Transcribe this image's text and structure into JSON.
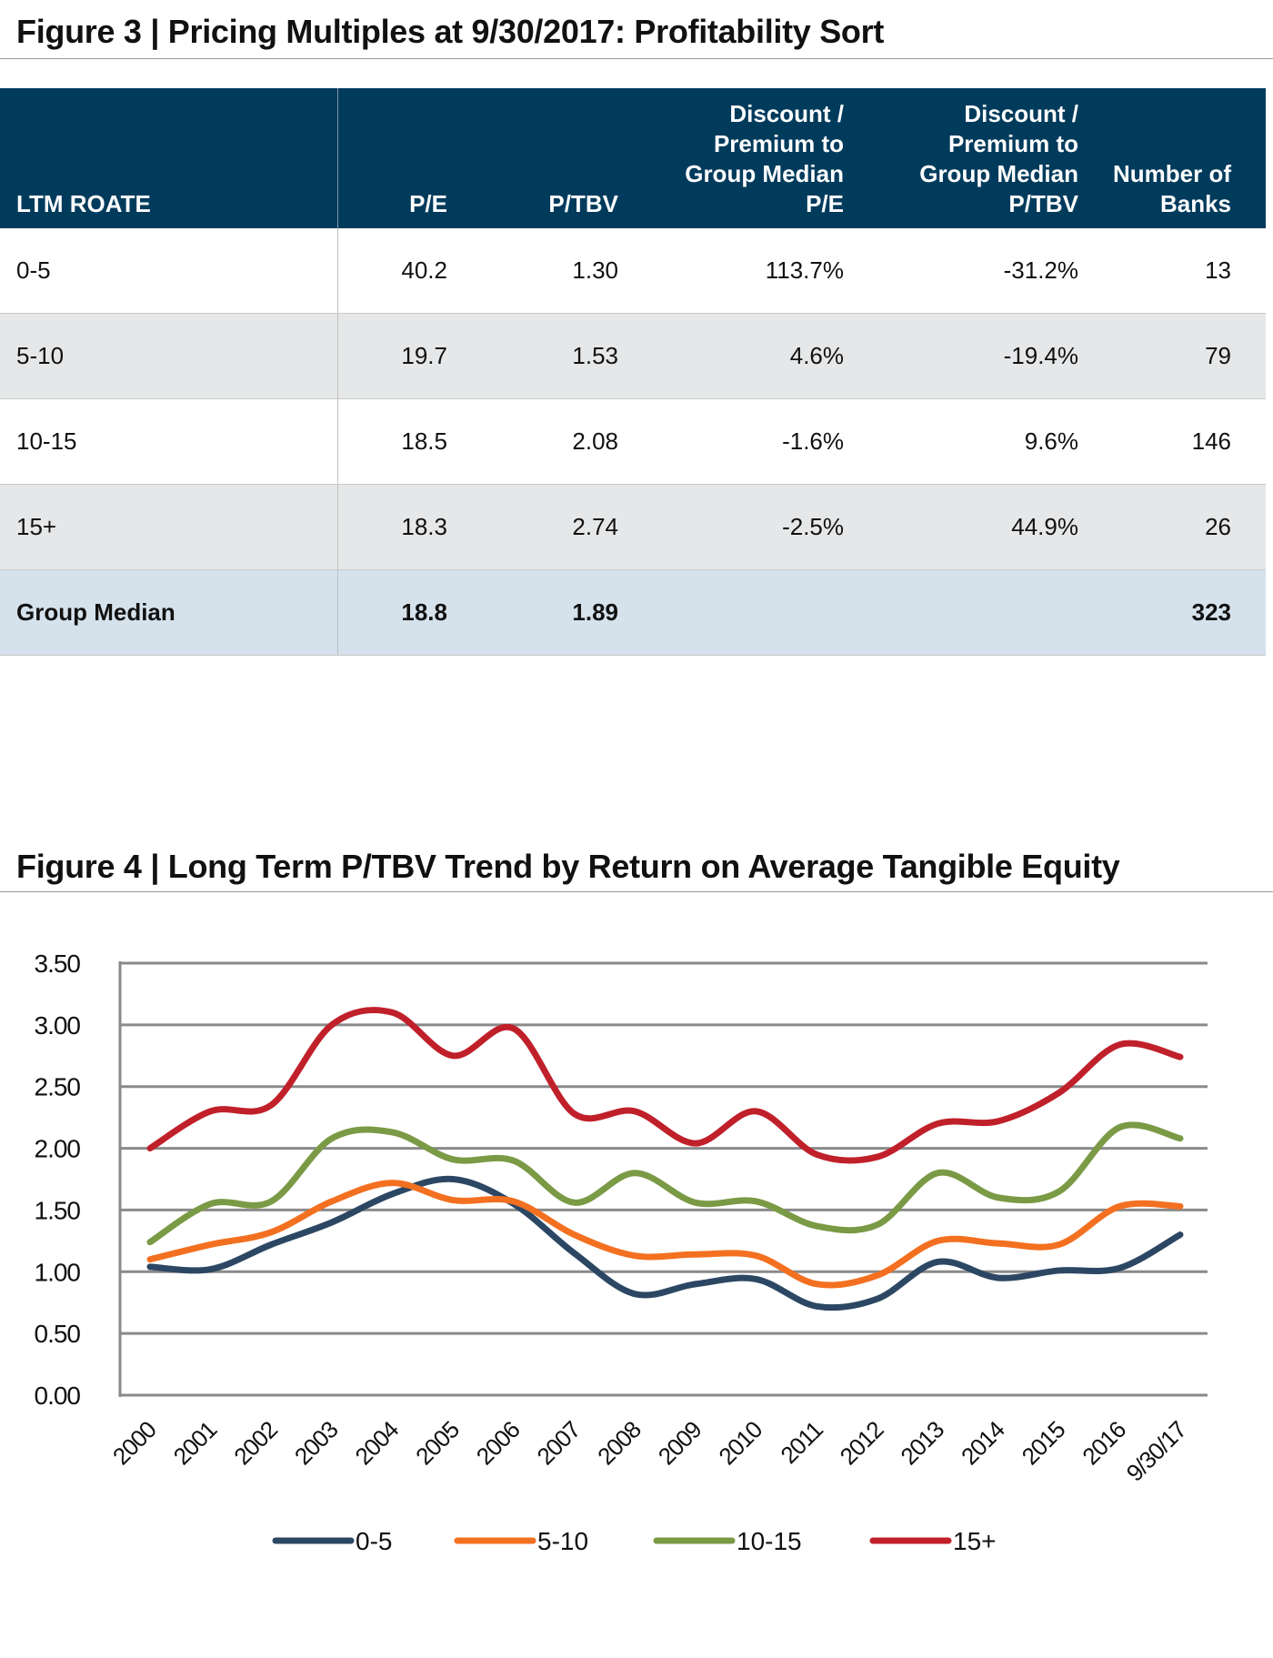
{
  "figure3": {
    "title": "Figure 3 | Pricing Multiples at 9/30/2017: Profitability Sort",
    "headers": [
      "LTM ROATE",
      "P/E",
      "P/TBV",
      "Discount / Premium to Group Median P/E",
      "Discount / Premium to Group Median P/TBV",
      "Number of Banks"
    ],
    "rows": [
      [
        "0-5",
        "40.2",
        "1.30",
        "113.7%",
        "-31.2%",
        "13"
      ],
      [
        "5-10",
        "19.7",
        "1.53",
        "4.6%",
        "-19.4%",
        "79"
      ],
      [
        "10-15",
        "18.5",
        "2.08",
        "-1.6%",
        "9.6%",
        "146"
      ],
      [
        "15+",
        "18.3",
        "2.74",
        "-2.5%",
        "44.9%",
        "26"
      ]
    ],
    "median": [
      "Group Median",
      "18.8",
      "1.89",
      "",
      "",
      "323"
    ],
    "colors": {
      "header": "#003b5c",
      "alt_row": "#e6e7e8",
      "median_row": "#d5e2ec"
    }
  },
  "figure4": {
    "title": "Figure 4 | Long Term P/TBV Trend by Return on Average Tangible Equity"
  },
  "chart_data": {
    "type": "line",
    "title": "Figure 4 | Long Term P/TBV Trend by Return on Average Tangible Equity",
    "categories": [
      "2000",
      "2001",
      "2002",
      "2003",
      "2004",
      "2005",
      "2006",
      "2007",
      "2008",
      "2009",
      "2010",
      "2011",
      "2012",
      "2013",
      "2014",
      "2015",
      "2016",
      "9/30/17"
    ],
    "ylim": [
      0,
      3.5
    ],
    "yticks": [
      "0.00",
      "0.50",
      "1.00",
      "1.50",
      "2.00",
      "2.50",
      "3.00",
      "3.50"
    ],
    "grid": true,
    "legend": "bottom",
    "smooth": true,
    "series": [
      {
        "name": "0-5",
        "color": "#2c4763",
        "values": [
          1.04,
          1.02,
          1.22,
          1.4,
          1.63,
          1.75,
          1.55,
          1.15,
          0.82,
          0.9,
          0.94,
          0.72,
          0.78,
          1.08,
          0.95,
          1.01,
          1.03,
          1.3
        ]
      },
      {
        "name": "5-10",
        "color": "#f37021",
        "values": [
          1.1,
          1.22,
          1.32,
          1.57,
          1.72,
          1.58,
          1.57,
          1.3,
          1.13,
          1.14,
          1.13,
          0.9,
          0.97,
          1.25,
          1.23,
          1.22,
          1.53,
          1.53
        ]
      },
      {
        "name": "10-15",
        "color": "#7a9a45",
        "values": [
          1.24,
          1.55,
          1.57,
          2.08,
          2.13,
          1.91,
          1.9,
          1.56,
          1.8,
          1.56,
          1.57,
          1.37,
          1.38,
          1.8,
          1.6,
          1.65,
          2.17,
          2.08
        ]
      },
      {
        "name": "15+",
        "color": "#c0202a",
        "values": [
          2.0,
          2.3,
          2.35,
          3.0,
          3.1,
          2.75,
          2.97,
          2.28,
          2.3,
          2.04,
          2.3,
          1.95,
          1.93,
          2.2,
          2.22,
          2.45,
          2.84,
          2.74
        ]
      }
    ]
  }
}
